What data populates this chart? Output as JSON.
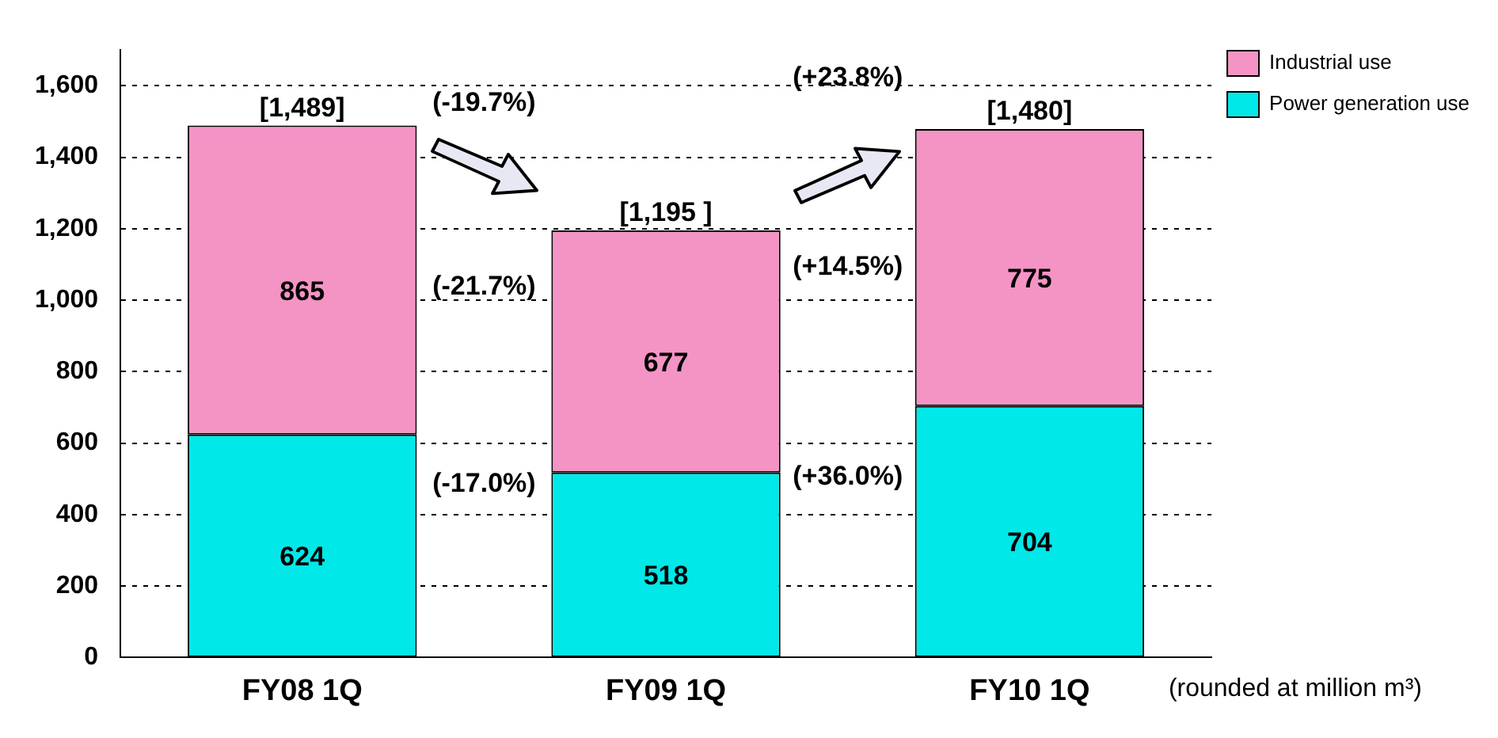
{
  "chart_data": {
    "type": "bar",
    "stacked": true,
    "categories": [
      "FY08 1Q",
      "FY09 1Q",
      "FY10 1Q"
    ],
    "series": [
      {
        "name": "Power generation use",
        "color": "#00e8e8",
        "values": [
          624,
          518,
          704
        ]
      },
      {
        "name": "Industrial use",
        "color": "#f394c5",
        "values": [
          865,
          677,
          775
        ]
      }
    ],
    "ylim": [
      0,
      1700
    ],
    "yticks": [
      {
        "value": 0,
        "label": "0"
      },
      {
        "value": 200,
        "label": "200"
      },
      {
        "value": 400,
        "label": "400"
      },
      {
        "value": 600,
        "label": "600"
      },
      {
        "value": 800,
        "label": "800"
      },
      {
        "value": 1000,
        "label": "1,000"
      },
      {
        "value": 1200,
        "label": "1,200"
      },
      {
        "value": 1400,
        "label": "1,400"
      },
      {
        "value": 1600,
        "label": "1,600"
      }
    ],
    "grid": "y",
    "legend": "top right",
    "data_labels": true,
    "totals": [
      "[1,489]",
      "[1,195 ]",
      "[1,480]"
    ],
    "annotations": [
      "(-19.7%)",
      "(-21.7%)",
      "(-17.0%)",
      "(+23.8%)",
      "(+14.5%)",
      "(+36.0%)",
      "(rounded at million m³)"
    ]
  }
}
